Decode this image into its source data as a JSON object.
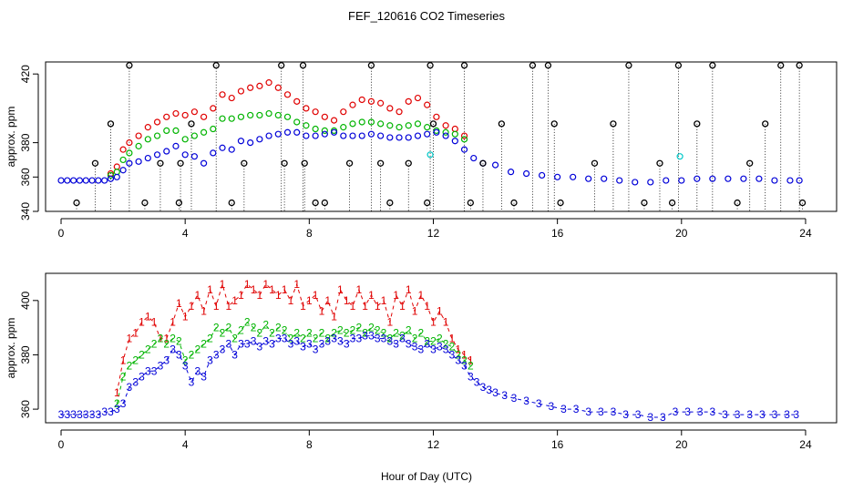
{
  "title": "FEF_120616  CO2 Timeseries",
  "xlabel": "Hour of Day (UTC)",
  "colors": {
    "level1": "#e00000",
    "level2": "#00b400",
    "level3": "#0000d8",
    "cal": "#000000",
    "special": "#00c8c8"
  },
  "chart_data": [
    {
      "type": "scatter",
      "ylabel": "approx. ppm",
      "xlim": [
        -0.5,
        25
      ],
      "ylim": [
        340,
        427
      ],
      "xticks": [
        0,
        4,
        8,
        12,
        16,
        20,
        24
      ],
      "xtick_labels": [
        "0",
        "4",
        "8",
        "12",
        "16",
        "20",
        "24"
      ],
      "yticks": [
        340,
        360,
        380,
        420
      ],
      "ytick_labels": [
        "340",
        "360",
        "380",
        "420"
      ],
      "series": [
        {
          "name": "",
          "color": "#e00000",
          "marker": "circle",
          "x": [
            1.6,
            1.8,
            2.0,
            2.2,
            2.5,
            2.8,
            3.1,
            3.4,
            3.7,
            4.0,
            4.3,
            4.6,
            4.9,
            5.2,
            5.5,
            5.8,
            6.1,
            6.4,
            6.7,
            7.0,
            7.3,
            7.6,
            7.9,
            8.2,
            8.5,
            8.8,
            9.1,
            9.4,
            9.7,
            10.0,
            10.3,
            10.6,
            10.9,
            11.2,
            11.5,
            11.8,
            12.1,
            12.4,
            12.7,
            13.0
          ],
          "y": [
            362,
            366,
            376,
            380,
            384,
            389,
            392,
            395,
            397,
            396,
            398,
            395,
            400,
            408,
            406,
            410,
            412,
            413,
            415,
            412,
            408,
            404,
            400,
            398,
            395,
            393,
            398,
            402,
            405,
            404,
            403,
            400,
            398,
            404,
            406,
            402,
            395,
            390,
            388,
            384
          ]
        },
        {
          "name": "",
          "color": "#00b400",
          "marker": "circle",
          "x": [
            1.6,
            1.8,
            2.0,
            2.2,
            2.5,
            2.8,
            3.1,
            3.4,
            3.7,
            4.0,
            4.3,
            4.6,
            4.9,
            5.2,
            5.5,
            5.8,
            6.1,
            6.4,
            6.7,
            7.0,
            7.3,
            7.6,
            7.9,
            8.2,
            8.5,
            8.8,
            9.1,
            9.4,
            9.7,
            10.0,
            10.3,
            10.6,
            10.9,
            11.2,
            11.5,
            11.8,
            12.1,
            12.4,
            12.7,
            13.0
          ],
          "y": [
            361,
            363,
            370,
            374,
            378,
            382,
            384,
            387,
            387,
            382,
            384,
            386,
            388,
            394,
            394,
            395,
            396,
            396,
            397,
            396,
            395,
            392,
            390,
            388,
            387,
            387,
            389,
            391,
            392,
            392,
            391,
            390,
            389,
            390,
            391,
            389,
            387,
            386,
            385,
            382
          ]
        },
        {
          "name": "",
          "color": "#0000d8",
          "marker": "circle",
          "x": [
            0,
            0.2,
            0.4,
            0.6,
            0.8,
            1.0,
            1.2,
            1.4,
            1.6,
            1.8,
            2.0,
            2.2,
            2.5,
            2.8,
            3.1,
            3.4,
            3.7,
            4.0,
            4.3,
            4.6,
            4.9,
            5.2,
            5.5,
            5.8,
            6.1,
            6.4,
            6.7,
            7.0,
            7.3,
            7.6,
            7.9,
            8.2,
            8.5,
            8.8,
            9.1,
            9.4,
            9.7,
            10.0,
            10.3,
            10.6,
            10.9,
            11.2,
            11.5,
            11.8,
            12.1,
            12.4,
            12.7,
            13.0,
            13.3,
            13.6,
            14.0,
            14.5,
            15.0,
            15.5,
            16.0,
            16.5,
            17.0,
            17.5,
            18.0,
            18.5,
            19.0,
            19.5,
            20.0,
            20.5,
            21.0,
            21.5,
            22.0,
            22.5,
            23.0,
            23.5,
            23.8
          ],
          "y": [
            358,
            358,
            358,
            358,
            358,
            358,
            358,
            358,
            359,
            360,
            364,
            368,
            369,
            371,
            373,
            375,
            378,
            373,
            372,
            368,
            374,
            377,
            376,
            381,
            380,
            382,
            384,
            385,
            386,
            386,
            384,
            384,
            385,
            386,
            384,
            384,
            384,
            385,
            384,
            383,
            383,
            383,
            384,
            385,
            386,
            384,
            381,
            376,
            371,
            368,
            367,
            363,
            362,
            361,
            360,
            360,
            359,
            359,
            358,
            357,
            357,
            358,
            358,
            359,
            359,
            359,
            359,
            359,
            358,
            358,
            358
          ]
        }
      ],
      "calibration_points": {
        "name": "",
        "color": "#000000",
        "marker": "circle",
        "drop_line": "dotted",
        "x": [
          0.5,
          1.1,
          1.6,
          2.2,
          2.7,
          3.2,
          3.8,
          3.85,
          4.2,
          5.0,
          5.5,
          5.9,
          7.1,
          7.2,
          7.8,
          7.85,
          8.2,
          8.5,
          9.3,
          10.0,
          10.3,
          10.6,
          11.2,
          11.8,
          11.9,
          12.0,
          13.0,
          13.2,
          13.6,
          14.2,
          14.6,
          15.2,
          15.7,
          15.9,
          16.1,
          17.2,
          17.8,
          18.3,
          18.8,
          19.3,
          19.7,
          19.9,
          20.5,
          21.0,
          21.8,
          22.2,
          22.7,
          23.2,
          23.8,
          23.9
        ],
        "y": [
          345,
          368,
          391,
          425,
          345,
          368,
          345,
          368,
          391,
          425,
          345,
          368,
          425,
          368,
          425,
          368,
          345,
          345,
          368,
          425,
          368,
          345,
          368,
          345,
          425,
          391,
          425,
          345,
          368,
          391,
          345,
          425,
          425,
          391,
          345,
          368,
          391,
          425,
          345,
          368,
          345,
          425,
          391,
          425,
          345,
          368,
          391,
          425,
          425,
          345
        ]
      },
      "special_points": {
        "name": "",
        "color": "#00c8c8",
        "marker": "circle",
        "x": [
          11.9,
          19.95
        ],
        "y": [
          373,
          372
        ]
      }
    },
    {
      "type": "line",
      "ylabel": "approx. ppm",
      "xlim": [
        -0.5,
        25
      ],
      "ylim": [
        355,
        410
      ],
      "xticks": [
        0,
        4,
        8,
        12,
        16,
        20,
        24
      ],
      "xtick_labels": [
        "0",
        "4",
        "8",
        "12",
        "16",
        "20",
        "24"
      ],
      "yticks": [
        360,
        380,
        400
      ],
      "ytick_labels": [
        "360",
        "380",
        "400"
      ],
      "series": [
        {
          "name": "",
          "label_char": "1",
          "color": "#e00000",
          "x": [
            1.8,
            2.0,
            2.2,
            2.4,
            2.6,
            2.8,
            3.0,
            3.2,
            3.4,
            3.6,
            3.8,
            4.0,
            4.2,
            4.4,
            4.6,
            4.8,
            5.0,
            5.2,
            5.4,
            5.6,
            5.8,
            6.0,
            6.2,
            6.4,
            6.6,
            6.8,
            7.0,
            7.2,
            7.4,
            7.6,
            7.8,
            8.0,
            8.2,
            8.4,
            8.6,
            8.8,
            9.0,
            9.2,
            9.4,
            9.6,
            9.8,
            10.0,
            10.2,
            10.4,
            10.6,
            10.8,
            11.0,
            11.2,
            11.4,
            11.6,
            11.8,
            12.0,
            12.2,
            12.4,
            12.6,
            12.8,
            13.0,
            13.2
          ],
          "y": [
            366,
            378,
            386,
            388,
            392,
            394,
            392,
            386,
            386,
            392,
            399,
            394,
            398,
            402,
            396,
            404,
            398,
            406,
            398,
            400,
            402,
            406,
            404,
            402,
            406,
            404,
            402,
            404,
            400,
            406,
            398,
            400,
            402,
            396,
            400,
            394,
            404,
            400,
            398,
            404,
            398,
            402,
            398,
            400,
            392,
            402,
            398,
            404,
            396,
            402,
            398,
            392,
            396,
            392,
            386,
            382,
            380,
            378
          ]
        },
        {
          "name": "",
          "label_char": "2",
          "color": "#00b400",
          "x": [
            1.8,
            2.0,
            2.2,
            2.4,
            2.6,
            2.8,
            3.0,
            3.2,
            3.4,
            3.6,
            3.8,
            4.0,
            4.2,
            4.4,
            4.6,
            4.8,
            5.0,
            5.2,
            5.4,
            5.6,
            5.8,
            6.0,
            6.2,
            6.4,
            6.6,
            6.8,
            7.0,
            7.2,
            7.4,
            7.6,
            7.8,
            8.0,
            8.2,
            8.4,
            8.6,
            8.8,
            9.0,
            9.2,
            9.4,
            9.6,
            9.8,
            10.0,
            10.2,
            10.4,
            10.6,
            10.8,
            11.0,
            11.2,
            11.4,
            11.6,
            11.8,
            12.0,
            12.2,
            12.4,
            12.6,
            12.8,
            13.0,
            13.2
          ],
          "y": [
            362,
            372,
            376,
            378,
            380,
            382,
            384,
            386,
            384,
            386,
            385,
            378,
            380,
            382,
            384,
            386,
            390,
            388,
            390,
            386,
            389,
            392,
            390,
            388,
            391,
            388,
            390,
            389,
            386,
            388,
            386,
            388,
            386,
            388,
            386,
            388,
            389,
            388,
            389,
            390,
            388,
            390,
            389,
            388,
            386,
            388,
            387,
            389,
            386,
            388,
            385,
            385,
            386,
            384,
            383,
            380,
            378,
            376
          ]
        },
        {
          "name": "",
          "label_char": "3",
          "color": "#0000d8",
          "x": [
            0.0,
            0.2,
            0.4,
            0.6,
            0.8,
            1.0,
            1.2,
            1.4,
            1.6,
            1.8,
            2.0,
            2.2,
            2.4,
            2.6,
            2.8,
            3.0,
            3.2,
            3.4,
            3.6,
            3.8,
            4.0,
            4.2,
            4.4,
            4.6,
            4.8,
            5.0,
            5.2,
            5.4,
            5.6,
            5.8,
            6.0,
            6.2,
            6.4,
            6.6,
            6.8,
            7.0,
            7.2,
            7.4,
            7.6,
            7.8,
            8.0,
            8.2,
            8.4,
            8.6,
            8.8,
            9.0,
            9.2,
            9.4,
            9.6,
            9.8,
            10.0,
            10.2,
            10.4,
            10.6,
            10.8,
            11.0,
            11.2,
            11.4,
            11.6,
            11.8,
            12.0,
            12.2,
            12.4,
            12.6,
            12.8,
            13.0,
            13.2,
            13.4,
            13.6,
            13.8,
            14.0,
            14.3,
            14.6,
            15.0,
            15.4,
            15.8,
            16.2,
            16.6,
            17.0,
            17.4,
            17.8,
            18.2,
            18.6,
            19.0,
            19.4,
            19.8,
            20.2,
            20.6,
            21.0,
            21.4,
            21.8,
            22.2,
            22.6,
            23.0,
            23.4,
            23.7
          ],
          "y": [
            358,
            358,
            358,
            358,
            358,
            358,
            358,
            359,
            359,
            360,
            362,
            368,
            370,
            372,
            374,
            374,
            376,
            378,
            382,
            380,
            376,
            370,
            374,
            372,
            378,
            380,
            382,
            384,
            380,
            384,
            384,
            385,
            383,
            385,
            384,
            386,
            386,
            384,
            385,
            383,
            384,
            382,
            384,
            385,
            386,
            385,
            384,
            386,
            386,
            387,
            387,
            386,
            386,
            385,
            384,
            386,
            384,
            383,
            382,
            384,
            382,
            383,
            382,
            380,
            378,
            376,
            372,
            370,
            368,
            367,
            366,
            365,
            364,
            363,
            362,
            361,
            360,
            360,
            359,
            359,
            359,
            358,
            358,
            357,
            357,
            359,
            359,
            359,
            359,
            358,
            358,
            358,
            358,
            358,
            358,
            358
          ]
        }
      ]
    }
  ]
}
